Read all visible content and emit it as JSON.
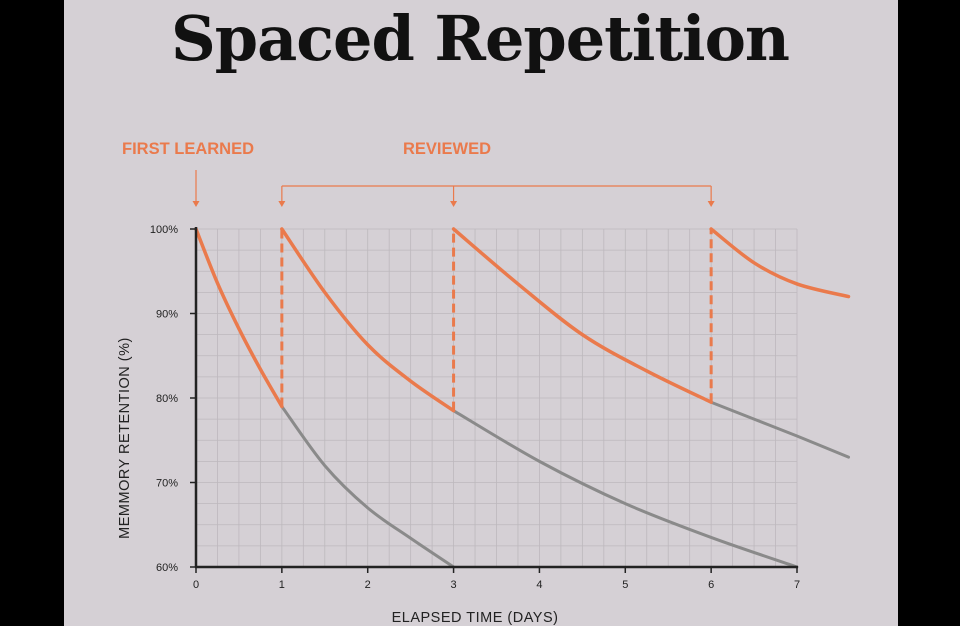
{
  "colors": {
    "panel": "#d5d0d5",
    "frame": "#000000",
    "accent": "#ea7a4c",
    "forgetting": "#8a8a8a",
    "axis": "#222222",
    "grid": "#bdb8bd"
  },
  "chart_data": {
    "type": "line",
    "title": "Spaced Repetition",
    "xlabel": "ELAPSED TIME (DAYS)",
    "ylabel": "MEMMORY RETENTION (%)",
    "xlim": [
      0,
      7
    ],
    "ylim": [
      60,
      100
    ],
    "x_ticks": [
      "0",
      "1",
      "2",
      "3",
      "4",
      "5",
      "6",
      "7"
    ],
    "y_ticks": [
      "60%",
      "70%",
      "80%",
      "90%",
      "100%"
    ],
    "grid": true,
    "annotations": [
      {
        "label": "FIRST LEARNED",
        "day": 0
      },
      {
        "label": "REVIEWED",
        "days": [
          1,
          3,
          6
        ]
      }
    ],
    "series": [
      {
        "kind": "retention-after-review",
        "points": [
          [
            0,
            100
          ],
          [
            0.25,
            93.6
          ],
          [
            0.5,
            88.2
          ],
          [
            0.75,
            83.4
          ],
          [
            1,
            79
          ]
        ]
      },
      {
        "kind": "retention-after-review",
        "points": [
          [
            1,
            100
          ],
          [
            1.5,
            92.5
          ],
          [
            2,
            86.3
          ],
          [
            2.5,
            82
          ],
          [
            3,
            78.5
          ]
        ]
      },
      {
        "kind": "retention-after-review",
        "points": [
          [
            3,
            100
          ],
          [
            3.75,
            93.5
          ],
          [
            4.5,
            87.5
          ],
          [
            5.25,
            83.2
          ],
          [
            6,
            79.5
          ]
        ]
      },
      {
        "kind": "retention-after-review",
        "points": [
          [
            6,
            100
          ],
          [
            6.5,
            96
          ],
          [
            7,
            93.5
          ],
          [
            7.6,
            92
          ]
        ]
      },
      {
        "kind": "forgetting",
        "points": [
          [
            1,
            79
          ],
          [
            1.5,
            72
          ],
          [
            2,
            67
          ],
          [
            2.5,
            63.4
          ],
          [
            3,
            60
          ]
        ]
      },
      {
        "kind": "forgetting",
        "points": [
          [
            3,
            78.5
          ],
          [
            4,
            72.5
          ],
          [
            5,
            67.5
          ],
          [
            6,
            63.5
          ],
          [
            7,
            60
          ]
        ]
      },
      {
        "kind": "forgetting",
        "points": [
          [
            6,
            79.5
          ],
          [
            6.5,
            77.5
          ],
          [
            7,
            75.5
          ],
          [
            7.6,
            73
          ]
        ]
      }
    ]
  }
}
